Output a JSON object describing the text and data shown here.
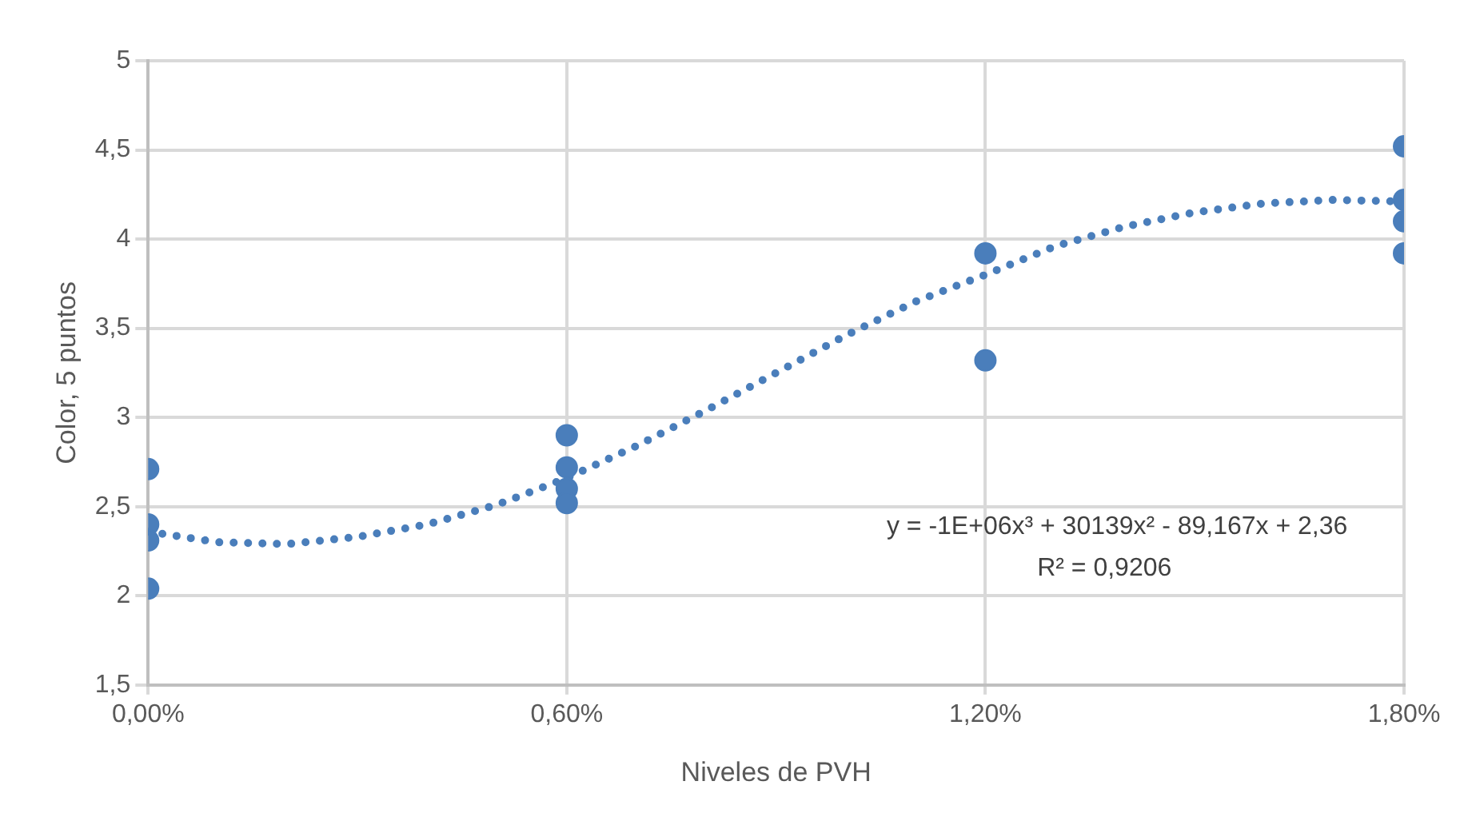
{
  "chart_data": {
    "type": "scatter",
    "xlabel": "Niveles de PVH",
    "ylabel": "Color, 5 puntos",
    "xlim": [
      0,
      1.8
    ],
    "xticks": [
      {
        "value": 0,
        "label": "0,00%"
      },
      {
        "value": 0.6,
        "label": "0,60%"
      },
      {
        "value": 1.2,
        "label": "1,20%"
      },
      {
        "value": 1.8,
        "label": "1,80%"
      }
    ],
    "ylim": [
      1.5,
      5
    ],
    "yticks": [
      {
        "value": 1.5,
        "label": "1,5"
      },
      2,
      {
        "value": 2.5,
        "label": "2,5"
      },
      3,
      {
        "value": 3.5,
        "label": "3,5"
      },
      4,
      {
        "value": 4.5,
        "label": "4,5"
      },
      5
    ],
    "grid": true,
    "legend": false,
    "marker": "circle",
    "series": [
      {
        "color": "#4a7ebb",
        "x": [
          0,
          0,
          0,
          0,
          0.6,
          0.6,
          0.6,
          0.6,
          1.2,
          1.2,
          1.8,
          1.8,
          1.8,
          1.8
        ],
        "values": [
          2.71,
          2.4,
          2.31,
          2.04,
          2.9,
          2.72,
          2.6,
          2.52,
          3.92,
          3.32,
          4.52,
          4.22,
          4.1,
          3.92
        ]
      },
      {
        "type": "line",
        "line_style": "dotted",
        "marker": "none",
        "color": "#4a7ebb",
        "x": [
          0,
          0.1,
          0.2,
          0.3,
          0.4,
          0.5,
          0.6,
          0.7,
          0.8,
          0.9,
          1.0,
          1.1,
          1.2,
          1.3,
          1.4,
          1.5,
          1.6,
          1.7,
          1.8
        ],
        "values": [
          2.36,
          2.3,
          2.29,
          2.33,
          2.4,
          2.51,
          2.66,
          2.84,
          3.04,
          3.25,
          3.46,
          3.65,
          3.8,
          3.96,
          4.07,
          4.15,
          4.2,
          4.22,
          4.21
        ]
      }
    ],
    "annotations": [
      "y = -1E+06x³ + 30139x² - 89,167x + 2,36",
      "R² = 0,9206"
    ]
  }
}
